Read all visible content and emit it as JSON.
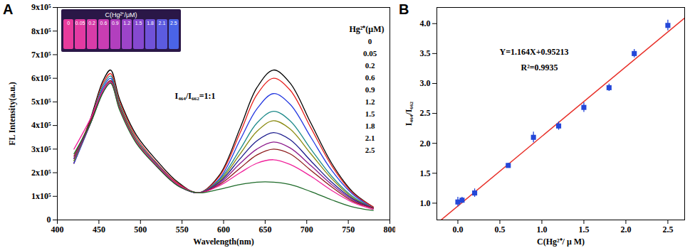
{
  "chart_data": [
    {
      "type": "line",
      "panel_label": "A",
      "x_label": "Wavelength(nm)",
      "y_label": "FL Intensity(a.u.)",
      "x": [
        420,
        440,
        455,
        464,
        475,
        495,
        520,
        545,
        570,
        595,
        620,
        640,
        660,
        680,
        705,
        730,
        755,
        780
      ],
      "series": [
        {
          "name": "0",
          "color": "#000000",
          "values": [
            240000,
            430000,
            590000,
            635000,
            510000,
            360000,
            250000,
            160000,
            115000,
            190000,
            390000,
            560000,
            635000,
            580000,
            410000,
            240000,
            120000,
            55000
          ]
        },
        {
          "name": "0.05",
          "color": "#e8201c",
          "values": [
            240000,
            420000,
            580000,
            620000,
            500000,
            350000,
            240000,
            155000,
            115000,
            185000,
            370000,
            530000,
            600000,
            550000,
            390000,
            230000,
            115000,
            55000
          ]
        },
        {
          "name": "0.2",
          "color": "#2438e0",
          "values": [
            240000,
            410000,
            560000,
            600000,
            480000,
            340000,
            235000,
            150000,
            115000,
            175000,
            340000,
            470000,
            535000,
            490000,
            350000,
            210000,
            110000,
            50000
          ]
        },
        {
          "name": "0.6",
          "color": "#1e8a8a",
          "values": [
            250000,
            420000,
            570000,
            610000,
            490000,
            340000,
            235000,
            150000,
            115000,
            170000,
            300000,
            410000,
            460000,
            420000,
            300000,
            185000,
            100000,
            50000
          ]
        },
        {
          "name": "0.9",
          "color": "#8a8a10",
          "values": [
            250000,
            410000,
            550000,
            590000,
            480000,
            335000,
            230000,
            150000,
            115000,
            165000,
            280000,
            375000,
            420000,
            385000,
            280000,
            175000,
            95000,
            50000
          ]
        },
        {
          "name": "1.2",
          "color": "#1a1a8c",
          "values": [
            260000,
            410000,
            550000,
            585000,
            475000,
            330000,
            230000,
            150000,
            115000,
            160000,
            260000,
            335000,
            370000,
            340000,
            250000,
            160000,
            90000,
            50000
          ]
        },
        {
          "name": "1.5",
          "color": "#8c1a8c",
          "values": [
            260000,
            410000,
            540000,
            580000,
            470000,
            330000,
            225000,
            145000,
            115000,
            155000,
            240000,
            300000,
            330000,
            305000,
            230000,
            150000,
            85000,
            50000
          ]
        },
        {
          "name": "1.8",
          "color": "#8c1a1a",
          "values": [
            270000,
            420000,
            550000,
            590000,
            475000,
            330000,
            230000,
            150000,
            115000,
            150000,
            220000,
            275000,
            300000,
            280000,
            210000,
            140000,
            80000,
            50000
          ]
        },
        {
          "name": "2.1",
          "color": "#f0209a",
          "values": [
            300000,
            430000,
            550000,
            585000,
            470000,
            330000,
            230000,
            150000,
            115000,
            145000,
            200000,
            240000,
            255000,
            235000,
            185000,
            125000,
            75000,
            45000
          ]
        },
        {
          "name": "2.5",
          "color": "#1f6b2a",
          "values": [
            280000,
            410000,
            540000,
            580000,
            465000,
            325000,
            225000,
            145000,
            115000,
            130000,
            150000,
            160000,
            160000,
            150000,
            120000,
            85000,
            55000,
            40000
          ]
        }
      ],
      "xlim": [
        400,
        800
      ],
      "xticks": [
        400,
        450,
        500,
        550,
        600,
        650,
        700,
        750,
        800
      ],
      "ylim": [
        0,
        900000
      ],
      "yticks": [
        0,
        {
          "value": 100000,
          "label": "1x10⁵"
        },
        {
          "value": 200000,
          "label": "2x10⁵"
        },
        {
          "value": 300000,
          "label": "3x10⁵"
        },
        {
          "value": 400000,
          "label": "4x10⁵"
        },
        {
          "value": 500000,
          "label": "5x10⁵"
        },
        {
          "value": 600000,
          "label": "6x10⁵"
        },
        {
          "value": 700000,
          "label": "7x10⁵"
        },
        {
          "value": 800000,
          "label": "8x10⁵"
        },
        {
          "value": 900000,
          "label": "9x10⁵"
        }
      ],
      "legend_title": "Hg²⁺(μM)",
      "annotation": "I₄₆₄/I₆₆₂=1:1",
      "inset": {
        "title": "C(Hg²⁺/μM)",
        "labels": [
          "0",
          "0.05",
          "0.2",
          "0.6",
          "0.9",
          "1.2",
          "1.5",
          "1.8",
          "2.1",
          "2.5"
        ],
        "colors": [
          "#e83a9c",
          "#e33aa2",
          "#d83ca8",
          "#c83db2",
          "#b23fbe",
          "#9c44c8",
          "#8649d0",
          "#7052d8",
          "#5c5be0",
          "#4a64e8"
        ]
      }
    },
    {
      "type": "scatter",
      "panel_label": "B",
      "x_label": "C(Hg²⁺/ μ M)",
      "y_label": "I₄₆₄/I₆₆₂",
      "x": [
        0,
        0.05,
        0.2,
        0.6,
        0.9,
        1.2,
        1.5,
        1.8,
        2.1,
        2.5
      ],
      "values": [
        1.02,
        1.05,
        1.17,
        1.63,
        2.1,
        2.29,
        2.6,
        2.93,
        3.5,
        3.97
      ],
      "errors": [
        0.08,
        0.05,
        0.07,
        0.04,
        0.09,
        0.07,
        0.08,
        0.06,
        0.07,
        0.09
      ],
      "color": "#2447d8",
      "marker": "square",
      "xlim": [
        -0.25,
        2.7
      ],
      "xticks": [
        {
          "value": 0,
          "label": "0.0"
        },
        0.5,
        {
          "value": 1,
          "label": "1.0"
        },
        1.5,
        {
          "value": 2,
          "label": "2.0"
        },
        2.5
      ],
      "ylim": [
        0.72,
        4.27
      ],
      "yticks": [
        {
          "value": 1,
          "label": "1.0"
        },
        1.5,
        {
          "value": 2,
          "label": "2.0"
        },
        2.5,
        {
          "value": 3,
          "label": "3.0"
        },
        3.5,
        {
          "value": 4,
          "label": "4.0"
        }
      ],
      "fit": {
        "slope": 1.164,
        "intercept": 0.95213,
        "color": "#e8312a",
        "equation": "Y=1.164X+0.95213",
        "r_squared_label": "R²=0.9935"
      }
    }
  ]
}
